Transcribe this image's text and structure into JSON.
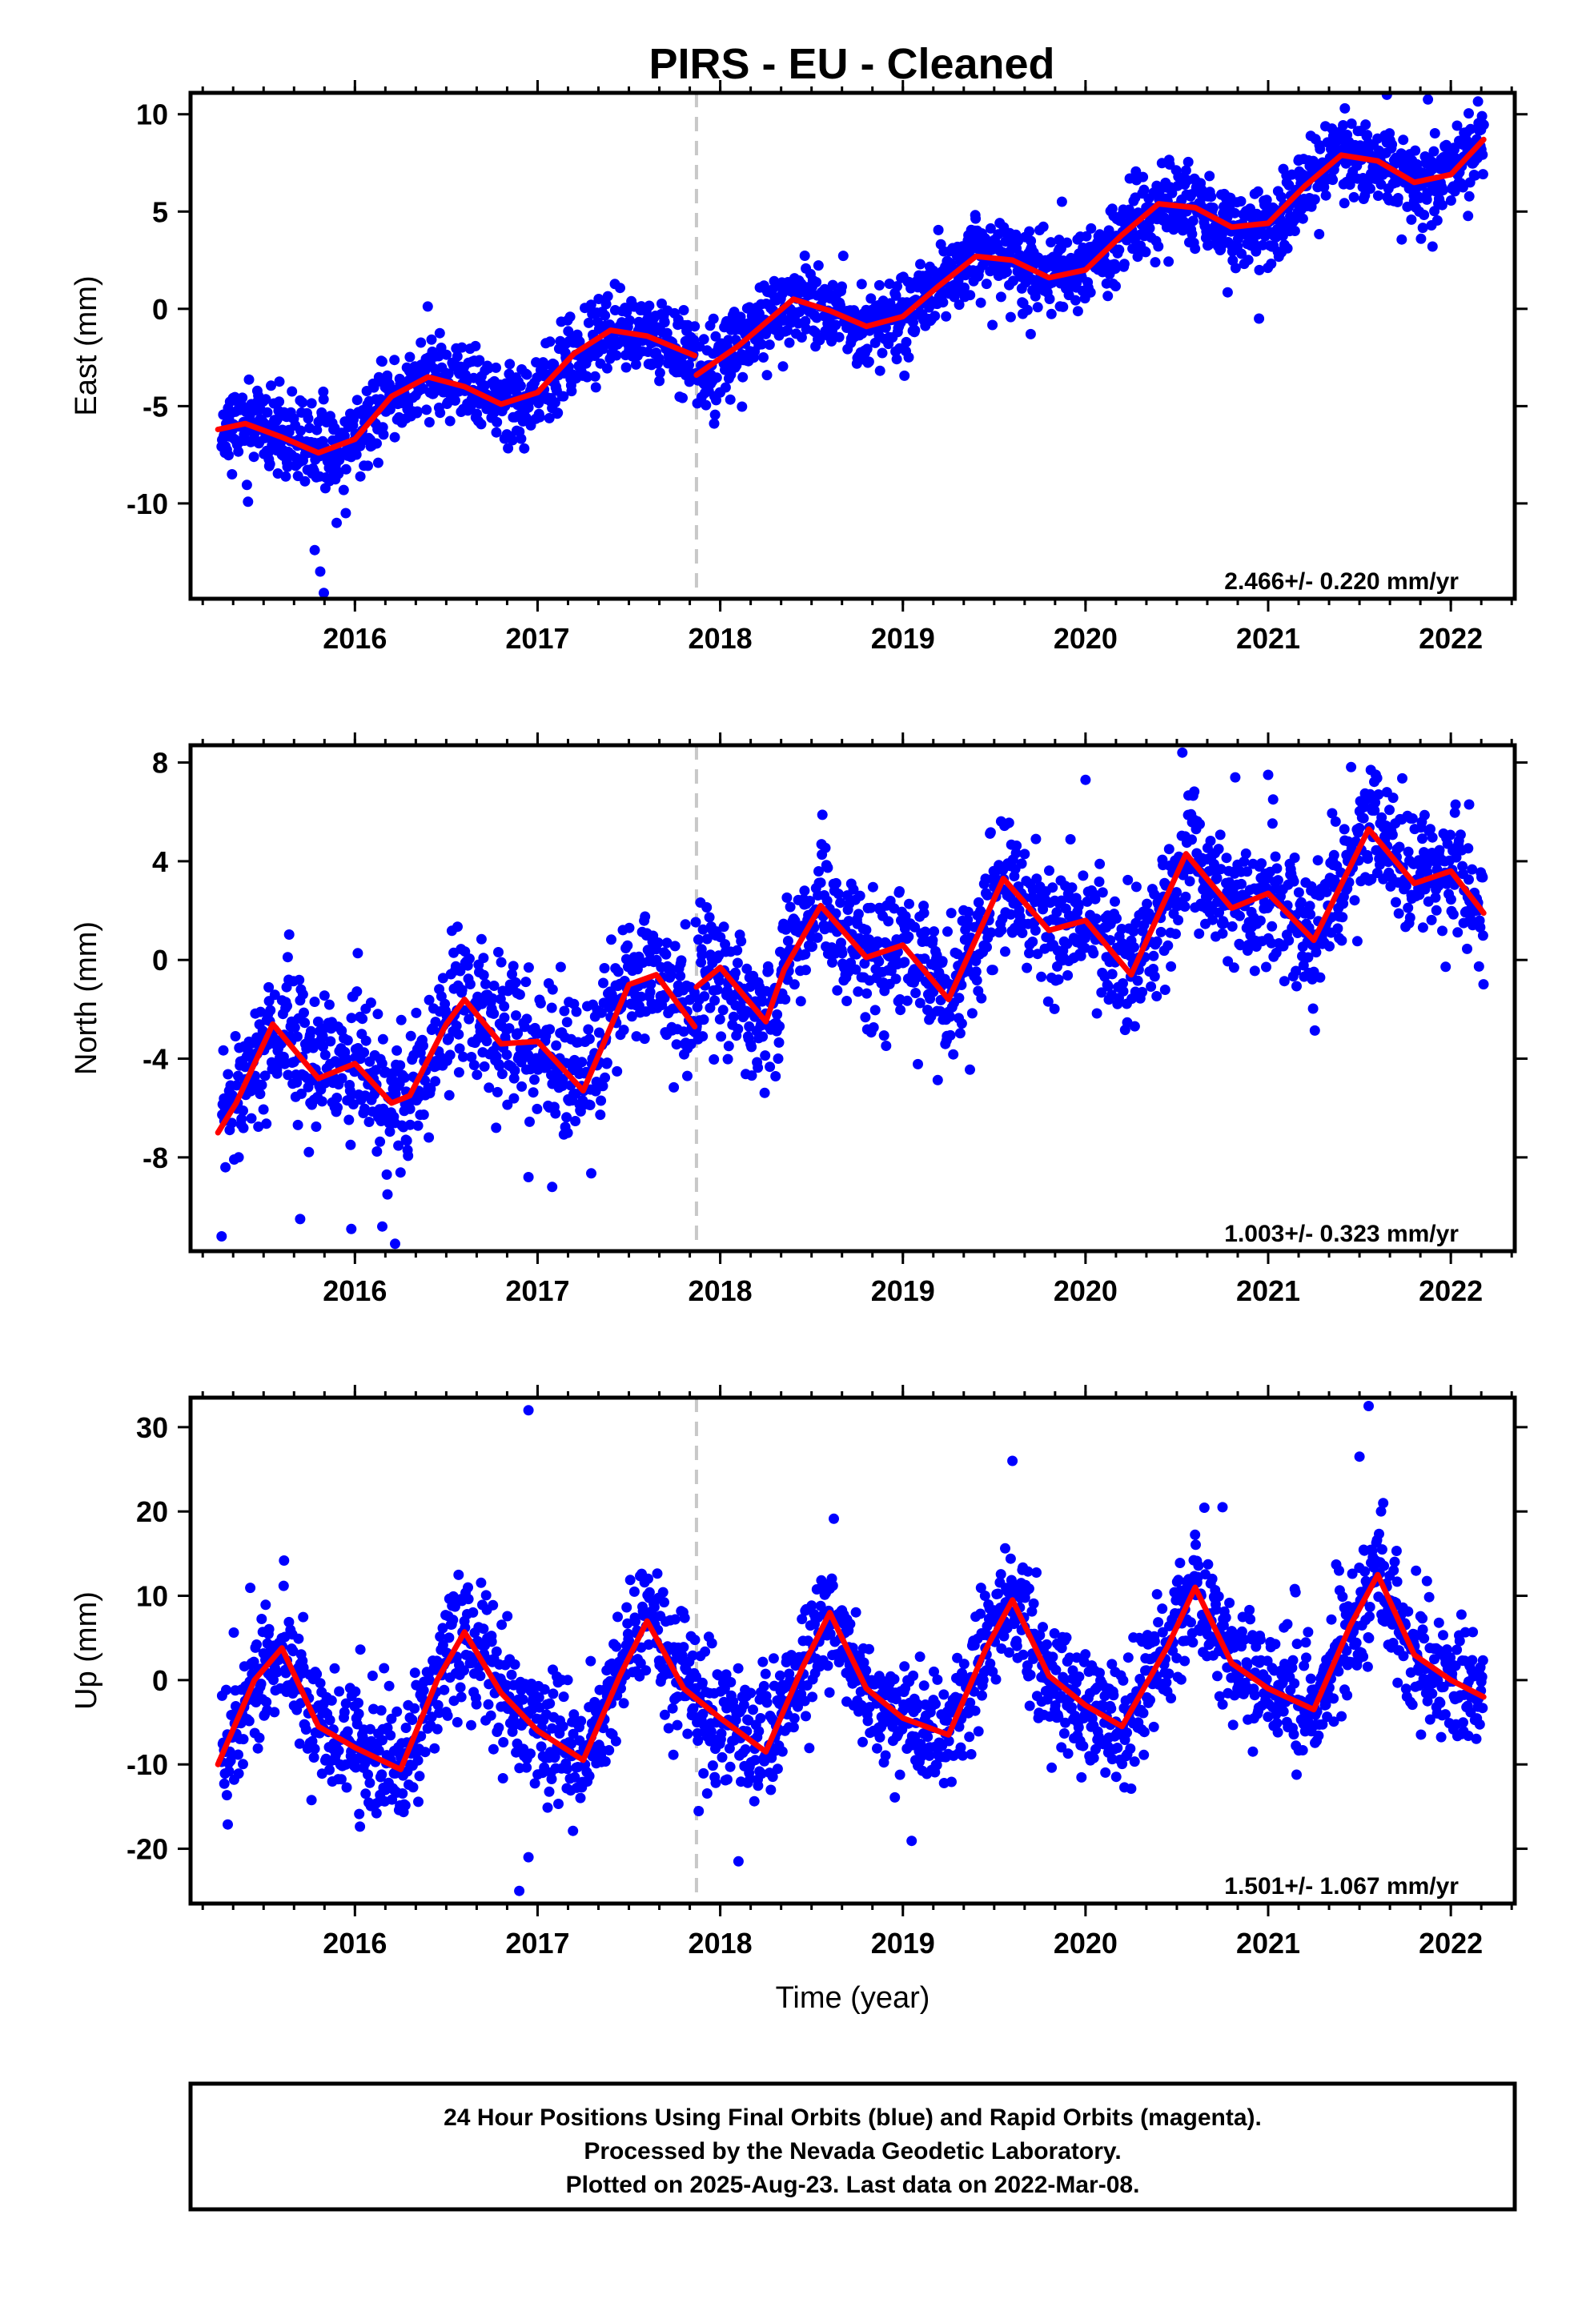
{
  "title": "PIRS  - EU - Cleaned",
  "colors": {
    "final_points": "#0000ff",
    "fit_line": "#ff0000",
    "event_line": "#c8c8c8",
    "frame": "#000000"
  },
  "footer": {
    "line1": "24 Hour Positions Using Final Orbits (blue) and Rapid Orbits (magenta).",
    "line2": "Processed by the Nevada Geodetic Laboratory.",
    "line3": "Plotted on 2025-Aug-23. Last data on 2022-Mar-08."
  },
  "chart_data": [
    {
      "type": "scatter",
      "component": "east",
      "ylabel": "East (mm)",
      "xlabel": "",
      "xlim": [
        2015.1,
        2022.35
      ],
      "ylim": [
        -14.9,
        11.1
      ],
      "yticks": [
        10,
        5,
        0,
        -5,
        -10
      ],
      "xticks": [
        2016,
        2017,
        2018,
        2019,
        2020,
        2021,
        2022
      ],
      "event_line_x": 2017.87,
      "rate_label": "2.466+/- 0.220 mm/yr",
      "fit_line": {
        "x": [
          2015.25,
          2015.4,
          2015.6,
          2015.8,
          2016.0,
          2016.2,
          2016.4,
          2016.6,
          2016.8,
          2017.0,
          2017.2,
          2017.4,
          2017.6,
          2017.86,
          2017.87,
          2018.1,
          2018.4,
          2018.6,
          2018.8,
          2019.0,
          2019.2,
          2019.4,
          2019.6,
          2019.8,
          2020.0,
          2020.2,
          2020.4,
          2020.6,
          2020.8,
          2021.0,
          2021.2,
          2021.4,
          2021.6,
          2021.8,
          2022.0,
          2022.18
        ],
        "y": [
          -6.2,
          -5.9,
          -6.6,
          -7.4,
          -6.7,
          -4.5,
          -3.5,
          -4.0,
          -4.9,
          -4.3,
          -2.3,
          -1.1,
          -1.4,
          -2.4,
          -3.4,
          -1.9,
          0.5,
          -0.1,
          -0.9,
          -0.4,
          1.2,
          2.7,
          2.5,
          1.6,
          2.0,
          3.8,
          5.4,
          5.2,
          4.2,
          4.4,
          6.3,
          7.9,
          7.6,
          6.5,
          6.9,
          8.7
        ]
      },
      "points": {
        "x_start": 2015.27,
        "x_end": 2022.18,
        "count": 2200,
        "seed": 11,
        "noise": 1.05,
        "outliers": [
          [
            2015.78,
            -12.4
          ],
          [
            2015.81,
            -13.5
          ],
          [
            2015.83,
            -14.6
          ],
          [
            2015.9,
            -11.0
          ],
          [
            2015.95,
            -10.5
          ],
          [
            2021.42,
            10.3
          ],
          [
            2021.65,
            11.0
          ],
          [
            2021.9,
            3.2
          ],
          [
            2020.95,
            -0.5
          ],
          [
            2019.7,
            -1.3
          ]
        ]
      }
    },
    {
      "type": "scatter",
      "component": "north",
      "ylabel": "North (mm)",
      "xlabel": "",
      "xlim": [
        2015.1,
        2022.35
      ],
      "ylim": [
        -11.8,
        8.7
      ],
      "yticks": [
        8,
        4,
        0,
        -4,
        -8
      ],
      "xticks": [
        2016,
        2017,
        2018,
        2019,
        2020,
        2021,
        2022
      ],
      "event_line_x": 2017.87,
      "rate_label": "1.003+/- 0.323 mm/yr",
      "fit_line": {
        "x": [
          2015.25,
          2015.35,
          2015.55,
          2015.8,
          2016.0,
          2016.2,
          2016.3,
          2016.5,
          2016.6,
          2016.8,
          2017.0,
          2017.25,
          2017.5,
          2017.65,
          2017.86,
          2017.87,
          2018.0,
          2018.25,
          2018.35,
          2018.55,
          2018.8,
          2019.0,
          2019.25,
          2019.55,
          2019.8,
          2020.0,
          2020.25,
          2020.55,
          2020.8,
          2021.0,
          2021.25,
          2021.55,
          2021.8,
          2022.0,
          2022.18
        ],
        "y": [
          -7.0,
          -5.8,
          -2.6,
          -4.8,
          -4.2,
          -5.8,
          -5.5,
          -2.6,
          -1.6,
          -3.4,
          -3.3,
          -5.3,
          -1.0,
          -0.6,
          -2.7,
          -1.1,
          -0.3,
          -2.5,
          -0.4,
          2.2,
          0.1,
          0.6,
          -1.6,
          3.3,
          1.2,
          1.6,
          -0.6,
          4.3,
          2.1,
          2.7,
          0.8,
          5.3,
          3.1,
          3.6,
          1.9
        ]
      },
      "points": {
        "x_start": 2015.27,
        "x_end": 2022.18,
        "count": 2200,
        "seed": 23,
        "noise": 1.35,
        "outliers": [
          [
            2015.27,
            -11.2
          ],
          [
            2015.7,
            -10.5
          ],
          [
            2015.98,
            -10.9
          ],
          [
            2016.15,
            -10.8
          ],
          [
            2016.22,
            -11.5
          ],
          [
            2016.95,
            -8.8
          ],
          [
            2017.08,
            -9.2
          ],
          [
            2017.82,
            -4.7
          ],
          [
            2020.0,
            7.3
          ],
          [
            2020.53,
            8.4
          ],
          [
            2021.0,
            7.5
          ],
          [
            2021.65,
            6.8
          ],
          [
            2022.1,
            6.3
          ],
          [
            2020.82,
            7.4
          ]
        ]
      }
    },
    {
      "type": "scatter",
      "component": "up",
      "ylabel": "Up (mm)",
      "xlabel": "Time (year)",
      "xlim": [
        2015.1,
        2022.35
      ],
      "ylim": [
        -26.5,
        33.5
      ],
      "yticks": [
        30,
        20,
        10,
        0,
        -10,
        -20
      ],
      "xticks": [
        2016,
        2017,
        2018,
        2019,
        2020,
        2021,
        2022
      ],
      "event_line_x": 2017.87,
      "rate_label": "1.501+/- 1.067 mm/yr",
      "fit_line": {
        "x": [
          2015.25,
          2015.45,
          2015.6,
          2015.8,
          2016.0,
          2016.25,
          2016.45,
          2016.6,
          2016.8,
          2017.0,
          2017.25,
          2017.45,
          2017.6,
          2017.8,
          2018.0,
          2018.25,
          2018.45,
          2018.6,
          2018.8,
          2019.0,
          2019.25,
          2019.45,
          2019.6,
          2019.8,
          2020.0,
          2020.2,
          2020.45,
          2020.6,
          2020.8,
          2021.0,
          2021.25,
          2021.45,
          2021.6,
          2021.8,
          2022.0,
          2022.18
        ],
        "y": [
          -10.0,
          0.0,
          3.8,
          -5.5,
          -8.0,
          -10.6,
          0.0,
          5.7,
          -1.5,
          -6.0,
          -9.5,
          0.5,
          7.0,
          -1.0,
          -4.5,
          -8.5,
          1.5,
          8.0,
          -1.0,
          -4.5,
          -6.5,
          3.5,
          9.5,
          0.5,
          -3.0,
          -5.5,
          4.0,
          11.0,
          2.0,
          -1.0,
          -3.5,
          6.5,
          12.5,
          3.0,
          0.0,
          -2.0
        ]
      },
      "points": {
        "x_start": 2015.27,
        "x_end": 2022.18,
        "count": 2200,
        "seed": 37,
        "noise": 3.9,
        "outliers": [
          [
            2016.95,
            32.0
          ],
          [
            2016.9,
            -25.0
          ],
          [
            2021.55,
            32.5
          ],
          [
            2019.6,
            26.0
          ],
          [
            2021.5,
            26.5
          ],
          [
            2018.1,
            -21.5
          ],
          [
            2016.95,
            -21.0
          ],
          [
            2020.75,
            20.5
          ]
        ]
      }
    }
  ]
}
